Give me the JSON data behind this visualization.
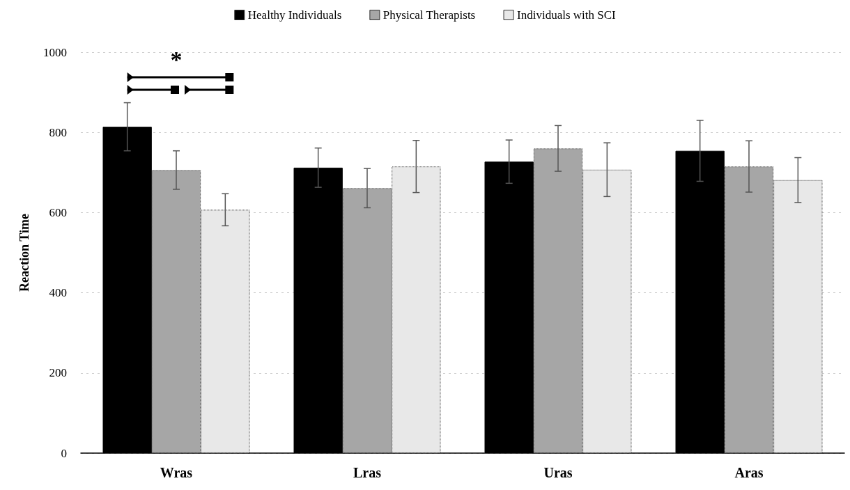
{
  "chart_data": {
    "type": "bar",
    "ylabel": "Reaction Time",
    "categories": [
      "Wras",
      "Lras",
      "Uras",
      "Aras"
    ],
    "series": [
      {
        "name": "Healthy Individuals",
        "color": "#000000",
        "values": [
          814,
          712,
          727,
          754
        ],
        "errors": [
          60,
          49,
          54,
          76
        ]
      },
      {
        "name": "Physical Therapists",
        "color": "#a6a6a6",
        "values": [
          706,
          661,
          760,
          715
        ],
        "errors": [
          48,
          49,
          57,
          64
        ]
      },
      {
        "name": "Individuals with SCI",
        "color": "#e8e8e8",
        "values": [
          607,
          715,
          707,
          681
        ],
        "errors": [
          40,
          65,
          67,
          56
        ]
      }
    ],
    "ylim": [
      0,
      1000
    ],
    "yticks": [
      0,
      200,
      400,
      600,
      800,
      1000
    ],
    "grid": "y",
    "legend": "top",
    "annotations": [
      "*"
    ]
  }
}
